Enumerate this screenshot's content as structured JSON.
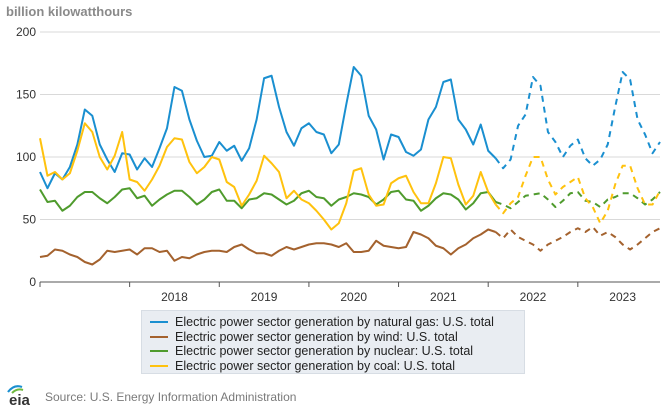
{
  "chart_data": {
    "type": "line",
    "ylabel": "billion kilowatthours",
    "ylim": [
      0,
      200
    ],
    "yticks": [
      "0",
      "50",
      "100",
      "150",
      "200"
    ],
    "xticks": [
      "2018",
      "2019",
      "2020",
      "2021",
      "2022",
      "2023"
    ],
    "x_start": "2017-01",
    "x_end": "2023-12",
    "forecast_start": "2022-02",
    "grid": "horizontal",
    "legend_position": "bottom",
    "series": [
      {
        "name": "Electric power sector generation by natural gas: U.S. total",
        "color": "#1a8fd0",
        "values": [
          88,
          75,
          87,
          82,
          92,
          110,
          138,
          133,
          110,
          98,
          88,
          103,
          102,
          90,
          99,
          92,
          107,
          123,
          156,
          153,
          130,
          113,
          100,
          101,
          112,
          105,
          109,
          97,
          107,
          130,
          163,
          165,
          140,
          120,
          109,
          123,
          127,
          120,
          118,
          103,
          110,
          142,
          172,
          165,
          133,
          122,
          98,
          118,
          116,
          104,
          101,
          106,
          130,
          140,
          160,
          162,
          130,
          122,
          110,
          126,
          105,
          99,
          91,
          98,
          125,
          134,
          164,
          157,
          120,
          112,
          100,
          109,
          114,
          99,
          93,
          98,
          110,
          140,
          168,
          162,
          130,
          118,
          103,
          112
        ]
      },
      {
        "name": "Electric power sector generation by wind: U.S. total",
        "color": "#a4622e",
        "values": [
          20,
          21,
          26,
          25,
          22,
          20,
          16,
          14,
          18,
          25,
          24,
          25,
          26,
          22,
          27,
          27,
          24,
          25,
          17,
          20,
          19,
          22,
          24,
          25,
          25,
          24,
          28,
          30,
          26,
          23,
          23,
          21,
          25,
          28,
          26,
          28,
          30,
          31,
          31,
          30,
          28,
          31,
          24,
          24,
          25,
          33,
          29,
          28,
          27,
          28,
          40,
          38,
          35,
          29,
          27,
          22,
          27,
          30,
          35,
          38,
          42,
          40,
          35,
          42,
          36,
          33,
          30,
          25,
          30,
          33,
          36,
          40,
          43,
          40,
          44,
          37,
          40,
          36,
          30,
          26,
          30,
          35,
          40,
          43
        ]
      },
      {
        "name": "Electric power sector generation by nuclear: U.S. total",
        "color": "#4f9b2d",
        "values": [
          74,
          64,
          65,
          57,
          61,
          68,
          72,
          72,
          67,
          63,
          68,
          74,
          75,
          67,
          69,
          61,
          66,
          70,
          73,
          73,
          68,
          62,
          66,
          72,
          74,
          65,
          65,
          59,
          66,
          67,
          71,
          70,
          66,
          62,
          65,
          71,
          73,
          68,
          67,
          61,
          66,
          68,
          71,
          70,
          68,
          62,
          66,
          72,
          73,
          66,
          65,
          57,
          61,
          67,
          71,
          70,
          66,
          58,
          63,
          71,
          72,
          64,
          62,
          59,
          64,
          69,
          70,
          71,
          66,
          60,
          65,
          71,
          72,
          65,
          64,
          60,
          66,
          68,
          71,
          71,
          67,
          62,
          66,
          72
        ]
      },
      {
        "name": "Electric power sector generation by coal: U.S. total",
        "color": "#ffc20e",
        "values": [
          115,
          85,
          88,
          82,
          87,
          105,
          127,
          120,
          100,
          90,
          101,
          120,
          82,
          80,
          73,
          82,
          93,
          108,
          115,
          114,
          96,
          87,
          92,
          100,
          98,
          80,
          76,
          61,
          70,
          81,
          101,
          95,
          88,
          67,
          73,
          66,
          63,
          57,
          50,
          42,
          47,
          63,
          89,
          91,
          70,
          61,
          62,
          79,
          83,
          85,
          72,
          63,
          63,
          79,
          100,
          99,
          78,
          62,
          69,
          88,
          72,
          62,
          55,
          63,
          68,
          85,
          100,
          100,
          82,
          70,
          76,
          80,
          84,
          67,
          60,
          47,
          57,
          78,
          93,
          93,
          75,
          62,
          62,
          73
        ]
      }
    ]
  },
  "source": "Source: U.S. Energy Information Administration",
  "logo_text": "eia"
}
